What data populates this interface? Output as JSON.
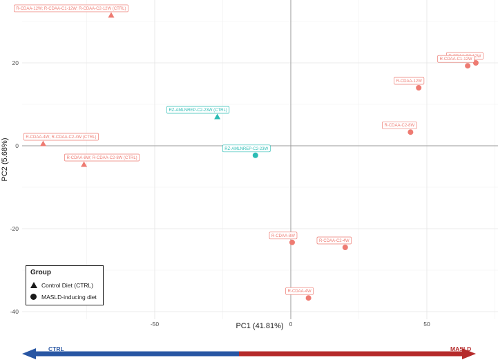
{
  "chart_data": {
    "type": "scatter",
    "xlabel": "PC1 (41.81%)",
    "ylabel": "PC2 (5.68%)",
    "xlim": [
      -80,
      77
    ],
    "ylim": [
      -41,
      35
    ],
    "x_ticks": [
      -50,
      0,
      50
    ],
    "y_ticks": [
      20,
      0,
      -20,
      -40
    ],
    "grid": true,
    "colors": {
      "MASLD": "#ee7b72",
      "teal": "#2bbcb4",
      "ctrl_arrow": "#2856a3",
      "masld_arrow": "#b52a2a"
    },
    "points": [
      {
        "label": "R-CDAA-12W; R-CDAA-C1-12W; R-CDAA-C2-12W (CTRL)",
        "x": -66,
        "y": 31.5,
        "shape": "triangle",
        "color": "MASLD"
      },
      {
        "label": "RZ-AMLNREP-C2-23W (CTRL)",
        "x": -27,
        "y": 7,
        "shape": "triangle",
        "color": "teal"
      },
      {
        "label": "R-CDAA-4W; R-CDAA-C2-4W (CTRL)",
        "x": -91,
        "y": 0.5,
        "shape": "triangle",
        "color": "MASLD"
      },
      {
        "label": "R-CDAA-8W; R-CDAA-C2-8W (CTRL)",
        "x": -76,
        "y": -4.5,
        "shape": "triangle",
        "color": "MASLD"
      },
      {
        "label": "R-CDAA-C2-12W",
        "x": 68,
        "y": 20,
        "shape": "circle",
        "color": "MASLD"
      },
      {
        "label": "R-CDAA-C1-12W",
        "x": 65,
        "y": 19.3,
        "shape": "circle",
        "color": "MASLD"
      },
      {
        "label": "R-CDAA-12W",
        "x": 47,
        "y": 14,
        "shape": "circle",
        "color": "MASLD"
      },
      {
        "label": "R-CDAA-C2-8W",
        "x": 44,
        "y": 3.3,
        "shape": "circle",
        "color": "MASLD"
      },
      {
        "label": "RZ-AMLNREP-C2-23W",
        "x": -13,
        "y": -2.3,
        "shape": "circle",
        "color": "teal"
      },
      {
        "label": "R-CDAA-8W",
        "x": 0.5,
        "y": -23.3,
        "shape": "circle",
        "color": "MASLD"
      },
      {
        "label": "R-CDAA-C2-4W",
        "x": 20,
        "y": -24.5,
        "shape": "circle",
        "color": "MASLD"
      },
      {
        "label": "R-CDAA-4W",
        "x": 6.5,
        "y": -36.7,
        "shape": "circle",
        "color": "MASLD"
      }
    ],
    "legend": {
      "title": "Group",
      "placement": "bottom-left",
      "items": [
        {
          "label": "Control Diet (CTRL)",
          "shape": "triangle"
        },
        {
          "label": "MASLD-inducing diet",
          "shape": "circle"
        }
      ]
    },
    "arrow": {
      "left_label": "CTRL",
      "right_label": "MASLD"
    }
  }
}
